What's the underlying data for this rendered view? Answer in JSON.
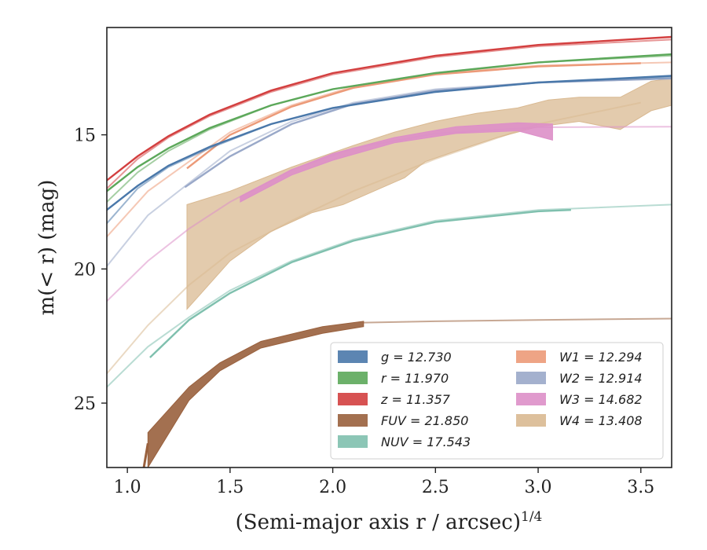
{
  "chart_data": {
    "type": "line",
    "title": "",
    "xlabel": "(Semi-major axis r / arcsec)",
    "xlabel_superscript": "1/4",
    "ylabel": "m(< r) (mag)",
    "xlim": [
      0.9,
      3.65
    ],
    "ylim": [
      27.4,
      11.0
    ],
    "y_inverted": true,
    "grid": false,
    "legend_position": "lower-right",
    "x_ticks": [
      1.0,
      1.5,
      2.0,
      2.5,
      3.0,
      3.5
    ],
    "x_tick_labels": [
      "1.0",
      "1.5",
      "2.0",
      "2.5",
      "3.0",
      "3.5"
    ],
    "y_ticks": [
      15,
      20,
      25
    ],
    "y_tick_labels": [
      "15",
      "20",
      "25"
    ],
    "legend_columns": [
      [
        "g",
        "r",
        "z",
        "FUV",
        "NUV"
      ],
      [
        "W1",
        "W2",
        "W3",
        "W4"
      ]
    ],
    "series": [
      {
        "key": "W4",
        "name": "W4",
        "legend_label": "W4 = 13.408",
        "color": "#d9b991",
        "faint_line": [
          [
            0.9,
            23.9
          ],
          [
            1.1,
            22.1
          ],
          [
            1.3,
            20.6
          ],
          [
            1.5,
            19.4
          ],
          [
            1.8,
            18.2
          ],
          [
            2.1,
            17.1
          ],
          [
            2.5,
            15.9
          ],
          [
            3.0,
            14.6
          ],
          [
            3.5,
            13.8
          ]
        ],
        "band_upper": [
          [
            1.29,
            17.6
          ],
          [
            1.5,
            17.1
          ],
          [
            1.8,
            16.2
          ],
          [
            2.1,
            15.4
          ],
          [
            2.3,
            14.9
          ],
          [
            2.5,
            14.5
          ],
          [
            2.7,
            14.2
          ],
          [
            2.9,
            14.0
          ],
          [
            3.05,
            13.7
          ],
          [
            3.2,
            13.6
          ],
          [
            3.4,
            13.6
          ],
          [
            3.55,
            13.0
          ],
          [
            3.65,
            12.9
          ]
        ],
        "band_lower": [
          [
            3.65,
            13.9
          ],
          [
            3.55,
            14.1
          ],
          [
            3.4,
            14.8
          ],
          [
            3.2,
            14.5
          ],
          [
            3.0,
            14.7
          ],
          [
            2.8,
            15.1
          ],
          [
            2.6,
            15.6
          ],
          [
            2.45,
            16.0
          ],
          [
            2.35,
            16.6
          ],
          [
            2.2,
            17.1
          ],
          [
            2.05,
            17.6
          ],
          [
            1.9,
            17.9
          ],
          [
            1.7,
            18.6
          ],
          [
            1.5,
            19.7
          ],
          [
            1.29,
            21.5
          ]
        ]
      },
      {
        "key": "W3",
        "name": "W3",
        "legend_label": "W3 = 14.682",
        "color": "#dd8fc8",
        "faint_line": [
          [
            0.9,
            21.2
          ],
          [
            1.1,
            19.7
          ],
          [
            1.3,
            18.5
          ],
          [
            1.5,
            17.5
          ],
          [
            1.8,
            16.3
          ],
          [
            2.1,
            15.5
          ],
          [
            2.5,
            14.95
          ],
          [
            3.0,
            14.72
          ],
          [
            3.65,
            14.7
          ]
        ],
        "band_upper": [
          [
            1.55,
            17.3
          ],
          [
            1.8,
            16.3
          ],
          [
            2.0,
            15.7
          ],
          [
            2.3,
            15.1
          ],
          [
            2.6,
            14.7
          ],
          [
            2.9,
            14.55
          ],
          [
            3.07,
            14.6
          ]
        ],
        "band_lower": [
          [
            3.07,
            15.2
          ],
          [
            2.9,
            14.85
          ],
          [
            2.6,
            14.95
          ],
          [
            2.3,
            15.3
          ],
          [
            2.0,
            15.95
          ],
          [
            1.8,
            16.5
          ],
          [
            1.55,
            17.5
          ]
        ]
      },
      {
        "key": "W2",
        "name": "W2",
        "legend_label": "W2 = 12.914",
        "color": "#9aa9c9",
        "faint_line": [
          [
            0.9,
            19.9
          ],
          [
            1.1,
            18.0
          ],
          [
            1.3,
            16.8
          ],
          [
            1.5,
            15.6
          ],
          [
            1.8,
            14.5
          ],
          [
            2.1,
            13.8
          ],
          [
            2.5,
            13.3
          ],
          [
            3.0,
            13.05
          ],
          [
            3.65,
            12.9
          ]
        ],
        "solid_line": [
          [
            1.28,
            16.95
          ],
          [
            1.5,
            15.8
          ],
          [
            1.8,
            14.6
          ],
          [
            2.1,
            13.85
          ],
          [
            2.5,
            13.35
          ],
          [
            3.0,
            13.05
          ],
          [
            3.65,
            12.9
          ]
        ]
      },
      {
        "key": "W1",
        "name": "W1",
        "legend_label": "W1 = 12.294",
        "color": "#ec9a78",
        "faint_line": [
          [
            0.9,
            18.8
          ],
          [
            1.1,
            17.1
          ],
          [
            1.3,
            16.0
          ],
          [
            1.5,
            14.9
          ],
          [
            1.8,
            13.9
          ],
          [
            2.1,
            13.2
          ],
          [
            2.5,
            12.7
          ],
          [
            3.0,
            12.42
          ],
          [
            3.65,
            12.3
          ]
        ],
        "solid_line": [
          [
            1.29,
            16.25
          ],
          [
            1.5,
            15.0
          ],
          [
            1.8,
            13.95
          ],
          [
            2.1,
            13.25
          ],
          [
            2.5,
            12.75
          ],
          [
            3.0,
            12.45
          ],
          [
            3.5,
            12.33
          ]
        ]
      },
      {
        "key": "NUV",
        "name": "NUV",
        "legend_label": "NUV = 17.543",
        "color": "#7fc0ae",
        "faint_line": [
          [
            0.9,
            24.4
          ],
          [
            1.1,
            22.9
          ],
          [
            1.3,
            21.8
          ],
          [
            1.5,
            20.8
          ],
          [
            1.8,
            19.7
          ],
          [
            2.1,
            18.9
          ],
          [
            2.5,
            18.2
          ],
          [
            3.0,
            17.8
          ],
          [
            3.65,
            17.6
          ]
        ],
        "solid_line": [
          [
            1.11,
            23.3
          ],
          [
            1.3,
            21.9
          ],
          [
            1.5,
            20.9
          ],
          [
            1.8,
            19.75
          ],
          [
            2.1,
            18.95
          ],
          [
            2.5,
            18.25
          ],
          [
            3.0,
            17.85
          ],
          [
            3.16,
            17.8
          ]
        ]
      },
      {
        "key": "FUV",
        "name": "FUV",
        "legend_label": "FUV = 21.850",
        "color": "#99603d",
        "faint_line": [
          [
            2.15,
            22.0
          ],
          [
            2.5,
            21.95
          ],
          [
            3.0,
            21.9
          ],
          [
            3.65,
            21.85
          ]
        ],
        "band_upper": [
          [
            1.1,
            26.1
          ],
          [
            1.3,
            24.4
          ],
          [
            1.45,
            23.5
          ],
          [
            1.65,
            22.7
          ],
          [
            1.95,
            22.15
          ],
          [
            2.15,
            21.95
          ]
        ],
        "band_lower": [
          [
            2.15,
            22.15
          ],
          [
            1.95,
            22.4
          ],
          [
            1.65,
            22.95
          ],
          [
            1.45,
            23.8
          ],
          [
            1.3,
            24.9
          ],
          [
            1.1,
            27.4
          ]
        ],
        "tail_line": [
          [
            1.08,
            27.4
          ],
          [
            1.1,
            26.5
          ]
        ]
      },
      {
        "key": "g",
        "name": "g",
        "legend_label": "g = 12.730",
        "color": "#4a78aa",
        "faint_line": [
          [
            0.9,
            18.3
          ],
          [
            1.05,
            17.0
          ],
          [
            1.2,
            16.2
          ],
          [
            1.4,
            15.5
          ],
          [
            1.7,
            14.6
          ],
          [
            2.0,
            14.0
          ],
          [
            2.5,
            13.4
          ],
          [
            3.0,
            13.05
          ],
          [
            3.65,
            12.85
          ]
        ],
        "solid_line": [
          [
            0.9,
            17.8
          ],
          [
            1.05,
            16.9
          ],
          [
            1.2,
            16.15
          ],
          [
            1.4,
            15.45
          ],
          [
            1.7,
            14.6
          ],
          [
            2.0,
            14.0
          ],
          [
            2.5,
            13.4
          ],
          [
            3.0,
            13.05
          ],
          [
            3.65,
            12.8
          ]
        ]
      },
      {
        "key": "r",
        "name": "r",
        "legend_label": "r = 11.970",
        "color": "#5ca85a",
        "faint_line": [
          [
            0.9,
            17.5
          ],
          [
            1.05,
            16.4
          ],
          [
            1.2,
            15.6
          ],
          [
            1.4,
            14.8
          ],
          [
            1.7,
            13.9
          ],
          [
            2.0,
            13.3
          ],
          [
            2.5,
            12.7
          ],
          [
            3.0,
            12.3
          ],
          [
            3.65,
            12.05
          ]
        ],
        "solid_line": [
          [
            0.9,
            17.1
          ],
          [
            1.05,
            16.2
          ],
          [
            1.2,
            15.5
          ],
          [
            1.4,
            14.75
          ],
          [
            1.7,
            13.9
          ],
          [
            2.0,
            13.3
          ],
          [
            2.5,
            12.7
          ],
          [
            3.0,
            12.3
          ],
          [
            3.65,
            12.0
          ]
        ]
      },
      {
        "key": "z",
        "name": "z",
        "legend_label": "z = 11.357",
        "color": "#d33f3f",
        "faint_line": [
          [
            0.9,
            17.0
          ],
          [
            1.05,
            15.9
          ],
          [
            1.2,
            15.1
          ],
          [
            1.4,
            14.3
          ],
          [
            1.7,
            13.4
          ],
          [
            2.0,
            12.75
          ],
          [
            2.5,
            12.1
          ],
          [
            3.0,
            11.7
          ],
          [
            3.65,
            11.45
          ]
        ],
        "solid_line": [
          [
            0.9,
            16.7
          ],
          [
            1.05,
            15.8
          ],
          [
            1.2,
            15.05
          ],
          [
            1.4,
            14.25
          ],
          [
            1.7,
            13.35
          ],
          [
            2.0,
            12.7
          ],
          [
            2.5,
            12.05
          ],
          [
            3.0,
            11.65
          ],
          [
            3.65,
            11.35
          ]
        ]
      }
    ]
  }
}
